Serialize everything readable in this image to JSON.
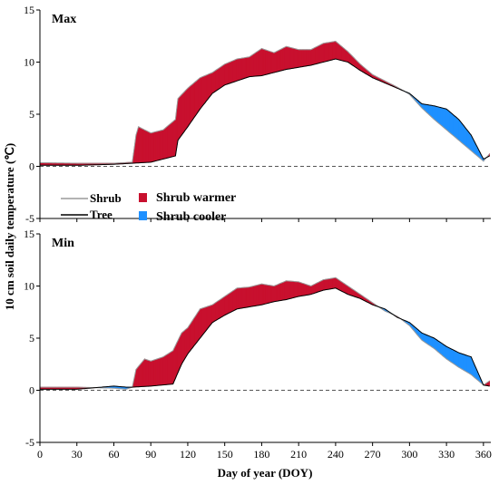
{
  "chart_data": {
    "type": "area",
    "ylabel": "10 cm soil daily temperature (℃)",
    "xlabel": "Day of year (DOY)",
    "xlim": [
      0,
      366
    ],
    "xticks": [
      "0",
      "30",
      "60",
      "90",
      "120",
      "150",
      "180",
      "210",
      "240",
      "270",
      "300",
      "330",
      "360"
    ],
    "legend": {
      "shrub_label": "Shrub",
      "tree_label": "Tree",
      "warmer_label": "Shrub warmer",
      "cooler_label": "Shrub cooler",
      "warmer_color": "#c8102e",
      "cooler_color": "#1e90ff"
    },
    "panels": [
      {
        "title": "Max",
        "ylim": [
          -5,
          15
        ],
        "yticks": [
          "-5",
          "0",
          "5",
          "10",
          "15"
        ],
        "tree": [
          [
            0,
            0.1
          ],
          [
            30,
            0.1
          ],
          [
            60,
            0.2
          ],
          [
            75,
            0.3
          ],
          [
            90,
            0.4
          ],
          [
            110,
            1.0
          ],
          [
            112,
            2.5
          ],
          [
            120,
            3.8
          ],
          [
            130,
            5.5
          ],
          [
            140,
            7.0
          ],
          [
            150,
            7.8
          ],
          [
            160,
            8.2
          ],
          [
            170,
            8.6
          ],
          [
            180,
            8.7
          ],
          [
            190,
            9.0
          ],
          [
            200,
            9.3
          ],
          [
            210,
            9.5
          ],
          [
            220,
            9.7
          ],
          [
            230,
            10.0
          ],
          [
            240,
            10.3
          ],
          [
            250,
            10.0
          ],
          [
            260,
            9.2
          ],
          [
            270,
            8.5
          ],
          [
            280,
            8.0
          ],
          [
            290,
            7.5
          ],
          [
            300,
            7.0
          ],
          [
            310,
            6.0
          ],
          [
            320,
            5.8
          ],
          [
            330,
            5.5
          ],
          [
            340,
            4.5
          ],
          [
            350,
            3.0
          ],
          [
            360,
            0.7
          ],
          [
            365,
            1.0
          ]
        ],
        "shrub": [
          [
            0,
            0.35
          ],
          [
            30,
            0.3
          ],
          [
            60,
            0.3
          ],
          [
            75,
            0.4
          ],
          [
            78,
            3.0
          ],
          [
            80,
            3.8
          ],
          [
            90,
            3.2
          ],
          [
            100,
            3.5
          ],
          [
            110,
            4.5
          ],
          [
            112,
            6.5
          ],
          [
            120,
            7.5
          ],
          [
            130,
            8.5
          ],
          [
            140,
            9.0
          ],
          [
            150,
            9.8
          ],
          [
            160,
            10.3
          ],
          [
            170,
            10.5
          ],
          [
            180,
            11.3
          ],
          [
            190,
            10.9
          ],
          [
            200,
            11.5
          ],
          [
            210,
            11.2
          ],
          [
            220,
            11.2
          ],
          [
            230,
            11.8
          ],
          [
            240,
            12.0
          ],
          [
            250,
            11.0
          ],
          [
            260,
            9.8
          ],
          [
            270,
            8.8
          ],
          [
            280,
            8.2
          ],
          [
            290,
            7.6
          ],
          [
            300,
            6.9
          ],
          [
            310,
            5.6
          ],
          [
            320,
            4.5
          ],
          [
            330,
            3.5
          ],
          [
            340,
            2.5
          ],
          [
            350,
            1.5
          ],
          [
            360,
            0.5
          ],
          [
            365,
            1.2
          ]
        ]
      },
      {
        "title": "Min",
        "ylim": [
          -5,
          15
        ],
        "yticks": [
          "-5",
          "0",
          "5",
          "10",
          "15"
        ],
        "tree": [
          [
            0,
            0.1
          ],
          [
            30,
            0.1
          ],
          [
            60,
            0.4
          ],
          [
            70,
            0.3
          ],
          [
            75,
            0.3
          ],
          [
            90,
            0.4
          ],
          [
            108,
            0.6
          ],
          [
            115,
            2.5
          ],
          [
            120,
            3.5
          ],
          [
            130,
            5.0
          ],
          [
            140,
            6.5
          ],
          [
            150,
            7.2
          ],
          [
            160,
            7.8
          ],
          [
            170,
            8.0
          ],
          [
            180,
            8.2
          ],
          [
            190,
            8.5
          ],
          [
            200,
            8.7
          ],
          [
            210,
            9.0
          ],
          [
            220,
            9.2
          ],
          [
            230,
            9.6
          ],
          [
            240,
            9.8
          ],
          [
            250,
            9.2
          ],
          [
            260,
            8.8
          ],
          [
            270,
            8.2
          ],
          [
            280,
            7.8
          ],
          [
            290,
            7.0
          ],
          [
            300,
            6.5
          ],
          [
            310,
            5.5
          ],
          [
            320,
            5.0
          ],
          [
            330,
            4.2
          ],
          [
            340,
            3.6
          ],
          [
            350,
            3.2
          ],
          [
            360,
            0.5
          ],
          [
            365,
            0.4
          ]
        ],
        "shrub": [
          [
            0,
            0.3
          ],
          [
            30,
            0.3
          ],
          [
            60,
            0.2
          ],
          [
            70,
            0.1
          ],
          [
            75,
            0.3
          ],
          [
            78,
            2.0
          ],
          [
            85,
            3.0
          ],
          [
            90,
            2.8
          ],
          [
            100,
            3.2
          ],
          [
            108,
            3.8
          ],
          [
            115,
            5.5
          ],
          [
            120,
            6.0
          ],
          [
            130,
            7.8
          ],
          [
            140,
            8.2
          ],
          [
            150,
            9.0
          ],
          [
            160,
            9.8
          ],
          [
            170,
            9.9
          ],
          [
            180,
            10.2
          ],
          [
            190,
            10.0
          ],
          [
            200,
            10.5
          ],
          [
            210,
            10.4
          ],
          [
            220,
            10.0
          ],
          [
            230,
            10.6
          ],
          [
            240,
            10.8
          ],
          [
            250,
            10.0
          ],
          [
            260,
            9.2
          ],
          [
            270,
            8.4
          ],
          [
            280,
            7.6
          ],
          [
            290,
            7.1
          ],
          [
            300,
            6.2
          ],
          [
            310,
            4.8
          ],
          [
            320,
            4.0
          ],
          [
            330,
            3.0
          ],
          [
            340,
            2.2
          ],
          [
            350,
            1.5
          ],
          [
            360,
            0.5
          ],
          [
            365,
            0.9
          ]
        ]
      }
    ]
  }
}
